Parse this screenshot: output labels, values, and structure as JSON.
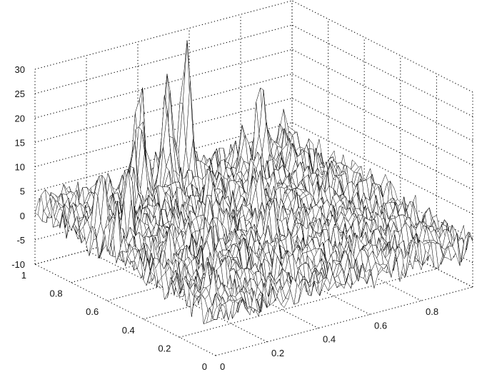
{
  "chart_data": {
    "type": "surface",
    "title": "",
    "xlabel": "",
    "ylabel": "",
    "zlabel": "",
    "grid": true,
    "colors": {
      "mesh_line": "#000000",
      "face": "#ffffff",
      "grid": "#000000",
      "background": "#ffffff"
    },
    "x_range": [
      0,
      1
    ],
    "y_range": [
      0,
      1
    ],
    "z_range": [
      -10,
      30
    ],
    "x_ticks": [
      "0",
      "0.2",
      "0.4",
      "0.6",
      "0.8"
    ],
    "y_ticks": [
      "0",
      "0.2",
      "0.4",
      "0.6",
      "0.8",
      "1"
    ],
    "z_ticks": [
      "-10",
      "-5",
      "0",
      "5",
      "10",
      "15",
      "20",
      "25",
      "30"
    ],
    "surface": {
      "grid_size": [
        60,
        60
      ],
      "base_level": 0,
      "noise_amplitude": 3.5,
      "peaks": [
        {
          "x": 0.53,
          "y": 0.92,
          "z": 29
        },
        {
          "x": 0.47,
          "y": 0.93,
          "z": 24
        },
        {
          "x": 0.38,
          "y": 0.96,
          "z": 22
        },
        {
          "x": 0.43,
          "y": 0.89,
          "z": 19
        },
        {
          "x": 0.34,
          "y": 0.9,
          "z": 17
        },
        {
          "x": 0.28,
          "y": 0.86,
          "z": 13
        },
        {
          "x": 0.78,
          "y": 0.86,
          "z": 19
        },
        {
          "x": 0.7,
          "y": 0.84,
          "z": 10
        },
        {
          "x": 0.05,
          "y": 0.7,
          "z": 15
        },
        {
          "x": 0.12,
          "y": 0.66,
          "z": 13
        },
        {
          "x": 0.02,
          "y": 0.58,
          "z": 10
        },
        {
          "x": 0.4,
          "y": 0.6,
          "z": 12
        },
        {
          "x": 0.32,
          "y": 0.5,
          "z": 10
        },
        {
          "x": 0.58,
          "y": 0.6,
          "z": 9
        },
        {
          "x": 0.66,
          "y": 0.72,
          "z": 10
        },
        {
          "x": 0.22,
          "y": 0.35,
          "z": 8
        },
        {
          "x": 0.48,
          "y": 0.38,
          "z": 7
        },
        {
          "x": 0.1,
          "y": 0.42,
          "z": 7
        },
        {
          "x": 0.15,
          "y": 0.2,
          "z": 6
        },
        {
          "x": 0.35,
          "y": 0.15,
          "z": 5
        },
        {
          "x": 0.05,
          "y": 0.1,
          "z": 6
        },
        {
          "x": 0.88,
          "y": 0.6,
          "z": 5
        }
      ]
    }
  }
}
